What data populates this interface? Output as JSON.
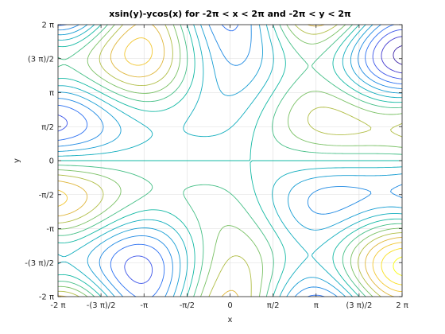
{
  "chart_data": {
    "type": "contour",
    "title": "xsin(y)-ycos(x) for -2π < x < 2π and -2π < y < 2π",
    "xlabel": "x",
    "ylabel": "y",
    "function": "x*sin(y) - y*cos(x)",
    "xlim": [
      -6.2832,
      6.2832
    ],
    "ylim": [
      -6.2832,
      6.2832
    ],
    "x_tick_values": [
      -6.2832,
      -4.7124,
      -3.1416,
      -1.5708,
      0,
      1.5708,
      3.1416,
      4.7124,
      6.2832
    ],
    "x_tick_labels": [
      "-2 π",
      "-(3 π)/2",
      "-π",
      "-π/2",
      "0",
      "π/2",
      "π",
      "(3 π)/2",
      "2 π"
    ],
    "y_tick_values": [
      -6.2832,
      -4.7124,
      -3.1416,
      -1.5708,
      0,
      1.5708,
      3.1416,
      4.7124,
      6.2832
    ],
    "y_tick_labels": [
      "-2 π",
      "-(3 π)/2",
      "-π",
      "-π/2",
      "0",
      "π/2",
      "π",
      "(3 π)/2",
      "2 π"
    ],
    "levels": [
      -10.5,
      -9,
      -7.5,
      -6,
      -4.5,
      -3,
      -1.5,
      0,
      1.5,
      3,
      4.5,
      6,
      7.5,
      9,
      10.5
    ],
    "colormap": "parula",
    "grid": true,
    "colors": [
      "#3e26a8",
      "#4743e0",
      "#2f6cf5",
      "#1e8fe0",
      "#13a9c9",
      "#14b9a4",
      "#58c27a",
      "#a8bf4a",
      "#e8b538",
      "#f9d42d",
      "#f9fb0e"
    ]
  }
}
